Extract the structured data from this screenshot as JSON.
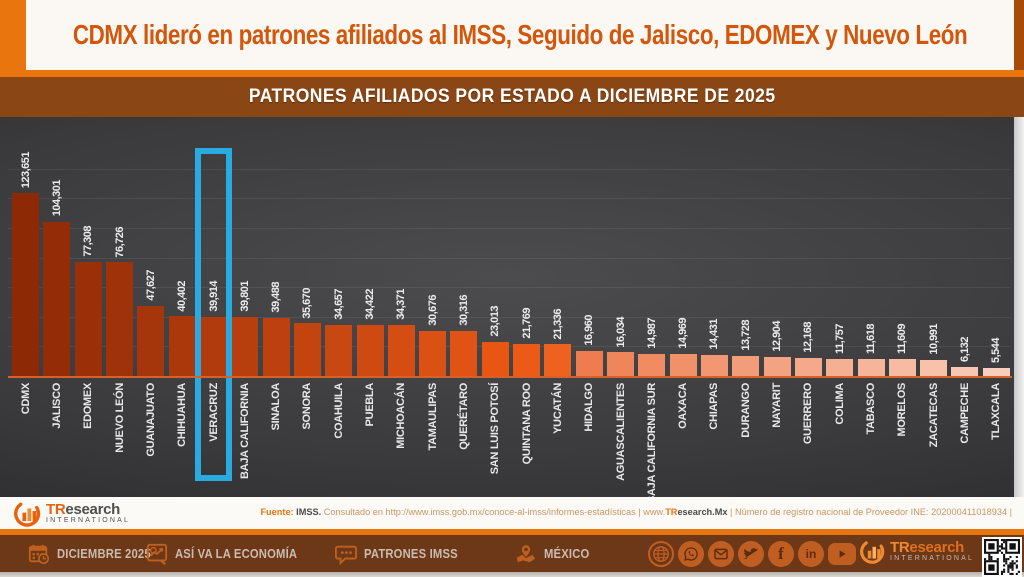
{
  "colors": {
    "accent_orange": "#E8750E",
    "title_orange": "#D2570C",
    "band_brown": "#8A4715",
    "bottombar_brown": "#6D3817",
    "highlight_blue": "#29ABE2",
    "axis_orange": "#D8602A"
  },
  "header": {
    "title": "CDMX lideró en patrones afiliados al IMSS, Seguido de Jalisco, EDOMEX y Nuevo León"
  },
  "banner": {
    "title": "PATRONES AFILIADOS POR ESTADO A DICIEMBRE DE 2025"
  },
  "chart_data": {
    "type": "bar",
    "title": "PATRONES AFILIADOS POR ESTADO A DICIEMBRE DE 2025",
    "xlabel": "",
    "ylabel": "",
    "ylim": [
      0,
      140000
    ],
    "gridline_interval": 20000,
    "grid": true,
    "legend": "none",
    "value_labels": true,
    "categories": [
      "CDMX",
      "JALISCO",
      "EDOMEX",
      "NUEVO LEÓN",
      "GUANAJUATO",
      "CHIHUAHUA",
      "VERACRUZ",
      "BAJA CALIFORNIA",
      "SINALOA",
      "SONORA",
      "COAHUILA",
      "PUEBLA",
      "MICHOACÁN",
      "TAMAULIPAS",
      "QUERÉTARO",
      "SAN LUIS POTOSÍ",
      "QUINTANA ROO",
      "YUCATÁN",
      "HIDALGO",
      "AGUASCALIENTES",
      "BAJA CALIFORNIA SUR",
      "OAXACA",
      "CHIAPAS",
      "DURANGO",
      "NAYARIT",
      "GUERRERO",
      "COLIMA",
      "TABASCO",
      "MORELOS",
      "ZACATECAS",
      "CAMPECHE",
      "TLAXCALA"
    ],
    "values": [
      123651,
      104301,
      77308,
      76726,
      47627,
      40402,
      39914,
      39801,
      39488,
      35670,
      34657,
      34422,
      34371,
      30676,
      30316,
      23013,
      21769,
      21336,
      16960,
      16034,
      14987,
      14969,
      14431,
      13728,
      12904,
      12168,
      11757,
      11618,
      11609,
      10991,
      6132,
      5544
    ],
    "bar_colors": [
      "#8E2906",
      "#942C07",
      "#9A2F08",
      "#9F3209",
      "#A5350A",
      "#AB380B",
      "#B13B0C",
      "#B73E0D",
      "#BD410E",
      "#C3440F",
      "#C94710",
      "#CF4A11",
      "#D54D12",
      "#DB5013",
      "#E15314",
      "#E85613",
      "#EB5B17",
      "#EE6220",
      "#EF7C4E",
      "#EF855A",
      "#F08B62",
      "#F1916A",
      "#F29772",
      "#F29D7A",
      "#F3A382",
      "#F4A98A",
      "#F5AF92",
      "#F6B59A",
      "#F6BBA2",
      "#F7C1AA",
      "#F8C7B2",
      "#F8CEBC"
    ],
    "highlight": {
      "category": "VERACRUZ",
      "index": 6,
      "color": "#29ABE2"
    }
  },
  "footer": {
    "logo": {
      "brand_tr": "TR",
      "brand_rest": "esearch",
      "subtitle": "INTERNATIONAL"
    },
    "source_segments": [
      {
        "text": "Fuente: ",
        "style": "label"
      },
      {
        "text": "IMSS. ",
        "style": "org"
      },
      {
        "text": "Consultado en http://www.imss.gob.mx/conoce-al-imss/informes-estadísticas | www.",
        "style": "body"
      },
      {
        "text": "TR",
        "style": "label"
      },
      {
        "text": "esearch.Mx",
        "style": "org"
      },
      {
        "text": " | Número de registro nacional de Proveedor INE: 202000411018934  |",
        "style": "body"
      }
    ]
  },
  "bottom_bar": {
    "items": [
      {
        "label": "DICIEMBRE 2025",
        "icon": "calendar-icon"
      },
      {
        "label": "ASÍ VA LA ECONOMÍA",
        "icon": "economy-chart-icon"
      },
      {
        "label": "PATRONES IMSS",
        "icon": "speech-bubble-icon"
      },
      {
        "label": "MÉXICO",
        "icon": "mexico-map-pin-icon"
      }
    ],
    "social_icons": [
      "globe-icon",
      "whatsapp-icon",
      "email-icon",
      "twitter-icon",
      "facebook-icon",
      "linkedin-icon",
      "youtube-icon"
    ],
    "logo": {
      "brand_tr": "TR",
      "brand_rest": "esearch",
      "subtitle": "INTERNATIONAL"
    }
  }
}
